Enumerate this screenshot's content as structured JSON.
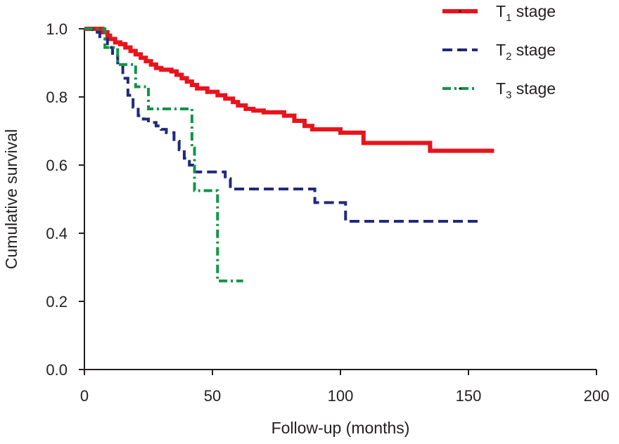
{
  "chart_data": {
    "type": "line",
    "title": "",
    "xlabel": "Follow-up (months)",
    "ylabel": "Cumulative survival",
    "xlim": [
      0,
      200
    ],
    "ylim": [
      0,
      1.0
    ],
    "xticks": [
      "0",
      "50",
      "100",
      "150",
      "200"
    ],
    "xtick_values": [
      0,
      50,
      100,
      150,
      200
    ],
    "yticks": [
      "0.0",
      "0.2",
      "0.4",
      "0.6",
      "0.8",
      "1.0"
    ],
    "ytick_values": [
      0,
      0.2,
      0.4,
      0.6,
      0.8,
      1.0
    ],
    "grid": false,
    "legend_position": "top-right",
    "series": [
      {
        "name": "T1 stage",
        "label_main": "T",
        "label_sub": "1",
        "label_tail": " stage",
        "color": "#e8131b",
        "style": "solid",
        "step": true,
        "x": [
          0,
          7,
          9,
          10,
          12,
          14,
          16,
          18,
          20,
          22,
          24,
          26,
          28,
          30,
          34,
          36,
          38,
          40,
          42,
          44,
          48,
          52,
          55,
          58,
          60,
          63,
          66,
          70,
          78,
          82,
          86,
          89,
          100,
          109,
          135,
          160
        ],
        "y": [
          1.0,
          0.99,
          0.98,
          0.97,
          0.96,
          0.955,
          0.945,
          0.935,
          0.925,
          0.915,
          0.905,
          0.895,
          0.885,
          0.88,
          0.875,
          0.865,
          0.855,
          0.845,
          0.835,
          0.825,
          0.815,
          0.805,
          0.795,
          0.785,
          0.775,
          0.765,
          0.76,
          0.755,
          0.745,
          0.73,
          0.715,
          0.705,
          0.695,
          0.665,
          0.642,
          0.642
        ]
      },
      {
        "name": "T2 stage",
        "label_main": "T",
        "label_sub": "2",
        "label_tail": " stage",
        "color": "#1f2a7c",
        "style": "dashed",
        "step": true,
        "x": [
          0,
          3,
          6,
          9,
          11,
          13,
          15,
          17,
          19,
          21,
          23,
          25,
          28,
          30,
          32,
          35,
          37,
          39,
          41,
          43,
          55,
          57,
          90,
          102,
          154
        ],
        "y": [
          1.0,
          0.99,
          0.97,
          0.945,
          0.92,
          0.9,
          0.855,
          0.805,
          0.77,
          0.745,
          0.735,
          0.725,
          0.715,
          0.705,
          0.695,
          0.67,
          0.645,
          0.62,
          0.6,
          0.58,
          0.56,
          0.53,
          0.49,
          0.435,
          0.435
        ]
      },
      {
        "name": "T3 stage",
        "label_main": "T",
        "label_sub": "3",
        "label_tail": " stage",
        "color": "#129448",
        "style": "dashdot",
        "step": true,
        "x": [
          0,
          8,
          13,
          20,
          25,
          42,
          43,
          52,
          62
        ],
        "y": [
          1.0,
          0.945,
          0.895,
          0.83,
          0.765,
          0.65,
          0.525,
          0.26,
          0.26
        ]
      }
    ]
  }
}
